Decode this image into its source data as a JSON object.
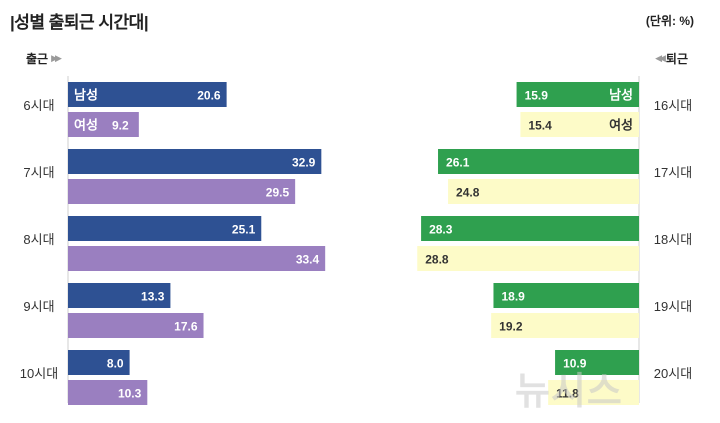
{
  "header": {
    "title": "|성별 출퇴근 시간대|",
    "unit": "(단위: %)"
  },
  "chart_data": {
    "type": "bar",
    "orientation": "horizontal-butterfly",
    "title": "성별 출퇴근 시간대",
    "unit": "%",
    "xlim": [
      0,
      35
    ],
    "legend": "inline",
    "panels": [
      {
        "name": "출근",
        "side": "left",
        "categories": [
          "6시대",
          "7시대",
          "8시대",
          "9시대",
          "10시대"
        ],
        "series": [
          {
            "name": "남성",
            "color": "#2e5193",
            "values": [
              20.6,
              32.9,
              25.1,
              13.3,
              8.0
            ]
          },
          {
            "name": "여성",
            "color": "#9a7fc0",
            "values": [
              9.2,
              29.5,
              33.4,
              17.6,
              10.3
            ]
          }
        ]
      },
      {
        "name": "퇴근",
        "side": "right",
        "categories": [
          "16시대",
          "17시대",
          "18시대",
          "19시대",
          "20시대"
        ],
        "series": [
          {
            "name": "남성",
            "color": "#2fa04f",
            "values": [
              15.9,
              26.1,
              28.3,
              18.9,
              10.9
            ]
          },
          {
            "name": "여성",
            "color": "#fdfbc8",
            "values": [
              15.4,
              24.8,
              28.8,
              19.2,
              11.8
            ]
          }
        ]
      }
    ]
  },
  "watermark": "뉴시스"
}
